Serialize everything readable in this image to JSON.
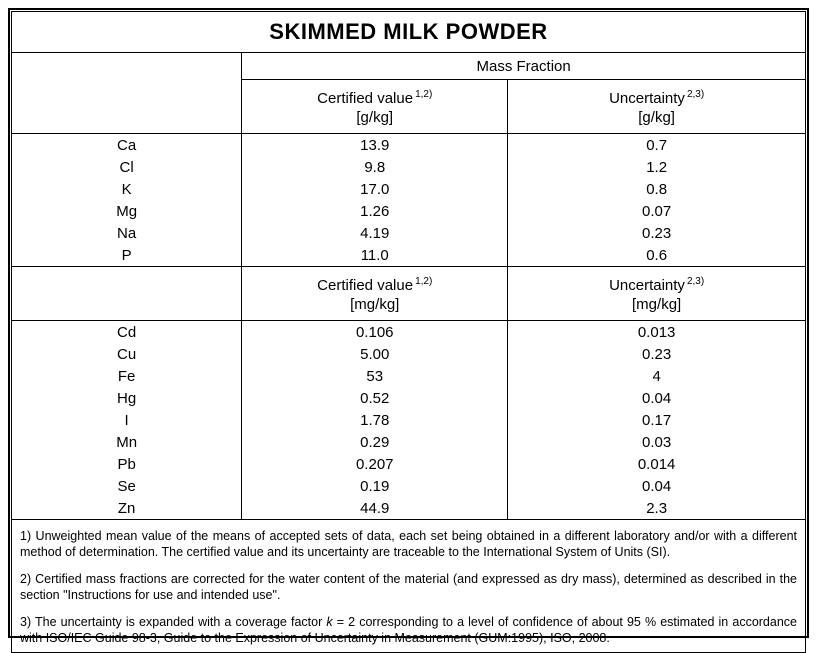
{
  "title": "SKIMMED MILK POWDER",
  "table": {
    "mass_fraction_header": "Mass Fraction",
    "group_gkg": {
      "certified_label": "Certified value",
      "certified_sup": "1,2)",
      "certified_unit": "[g/kg]",
      "uncertainty_label": "Uncertainty",
      "uncertainty_sup": "2,3)",
      "uncertainty_unit": "[g/kg]",
      "rows": [
        {
          "element": "Ca",
          "certified": "13.9",
          "uncertainty": "0.7"
        },
        {
          "element": "Cl",
          "certified": "9.8",
          "uncertainty": "1.2"
        },
        {
          "element": "K",
          "certified": "17.0",
          "uncertainty": "0.8"
        },
        {
          "element": "Mg",
          "certified": "1.26",
          "uncertainty": "0.07"
        },
        {
          "element": "Na",
          "certified": "4.19",
          "uncertainty": "0.23"
        },
        {
          "element": "P",
          "certified": "11.0",
          "uncertainty": "0.6"
        }
      ]
    },
    "group_mgkg": {
      "certified_label": "Certified value",
      "certified_sup": "1,2)",
      "certified_unit": "[mg/kg]",
      "uncertainty_label": "Uncertainty",
      "uncertainty_sup": "2,3)",
      "uncertainty_unit": "[mg/kg]",
      "rows": [
        {
          "element": "Cd",
          "certified": "0.106",
          "uncertainty": "0.013"
        },
        {
          "element": "Cu",
          "certified": "5.00",
          "uncertainty": "0.23"
        },
        {
          "element": "Fe",
          "certified": "53",
          "uncertainty": "4"
        },
        {
          "element": "Hg",
          "certified": "0.52",
          "uncertainty": "0.04"
        },
        {
          "element": "I",
          "certified": "1.78",
          "uncertainty": "0.17"
        },
        {
          "element": "Mn",
          "certified": "0.29",
          "uncertainty": "0.03"
        },
        {
          "element": "Pb",
          "certified": "0.207",
          "uncertainty": "0.014"
        },
        {
          "element": "Se",
          "certified": "0.19",
          "uncertainty": "0.04"
        },
        {
          "element": "Zn",
          "certified": "44.9",
          "uncertainty": "2.3"
        }
      ]
    }
  },
  "footnotes": {
    "f1": "1) Unweighted mean value of the means of accepted sets of data, each set being obtained in a different laboratory and/or with a different method of determination. The certified value and its uncertainty are traceable to the International System of Units (SI).",
    "f2": "2) Certified mass fractions are corrected for the water content of the material (and expressed as dry mass), determined as described in the section \"Instructions for use and intended use\".",
    "f3_before": "3) The uncertainty is expanded with a coverage factor ",
    "f3_k": "k",
    "f3_after": " = 2 corresponding to a level of confidence of about 95 % estimated in accordance with ISO/IEC Guide 98-3, Guide to the Expression of Uncertainty in Measurement (GUM:1995), ISO, 2008."
  }
}
